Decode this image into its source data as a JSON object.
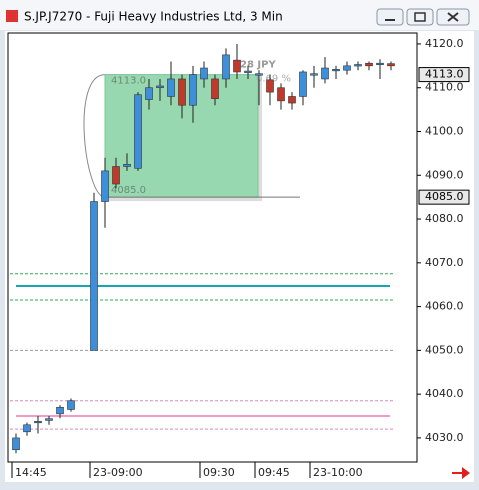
{
  "chart_data": {
    "type": "candlestick",
    "title": "S.JP.J7270 - Fuji Heavy Industries Ltd, 3 Min",
    "categories": [
      "14:45",
      null,
      null,
      null,
      null,
      null,
      "23-09:00",
      null,
      null,
      null,
      null,
      null,
      null,
      null,
      null,
      null,
      "09:30",
      null,
      null,
      null,
      null,
      "09:45",
      null,
      null,
      null,
      null,
      "23-10:00",
      null,
      null,
      null,
      null,
      null,
      null,
      null
    ],
    "open": [
      4027.3,
      4031.4,
      4033.5,
      4034,
      4035.5,
      4036.5,
      4050,
      4084,
      4092,
      4092,
      4091.6,
      4107.3,
      4110,
      4108,
      4112,
      4106,
      4112,
      4112,
      4112,
      4116.3,
      4113.5,
      4113,
      4111.8,
      4110,
      4108,
      4108,
      4113,
      4112,
      4114,
      4114,
      4115,
      4115.6,
      4115.5,
      4115.5
    ],
    "high": [
      4031,
      4033.5,
      4035,
      4035,
      4037.5,
      4039,
      4086,
      4094,
      4094,
      4095,
      4109,
      4112,
      4112,
      4116,
      4113,
      4115,
      4116,
      4113,
      4119,
      4120,
      4115,
      4114,
      4113,
      4111,
      4109,
      4114,
      4115,
      4117,
      4115,
      4116,
      4116,
      4116,
      4116.5,
      4116
    ],
    "low": [
      4026.5,
      4030.5,
      4031,
      4033,
      4034.5,
      4036,
      4050,
      4078,
      4087,
      4091,
      4091,
      4105,
      4107,
      4106,
      4103,
      4102,
      4110,
      4106,
      4110,
      4112,
      4112,
      4106,
      4106,
      4105,
      4105,
      4106,
      4110,
      4111,
      4112,
      4113,
      4114,
      4114,
      4112,
      4114
    ],
    "close": [
      4030,
      4033,
      4033.8,
      4034.4,
      4037,
      4038.5,
      4084,
      4091,
      4088,
      4092.5,
      4108.4,
      4110,
      4110.4,
      4112,
      4106,
      4113,
      4114.5,
      4107.5,
      4117.5,
      4113.6,
      4113.8,
      4113.2,
      4109,
      4107,
      4106.5,
      4113.6,
      4113.2,
      4114.5,
      4114.2,
      4115,
      4115.3,
      4115,
      4115.6,
      4115
    ],
    "up_color": "#3d8fdc",
    "down_color": "#c0392b",
    "ylim": [
      4024.5,
      4122.5
    ],
    "yticks": [
      {
        "value": 4030,
        "label": "4030.0"
      },
      {
        "value": 4040,
        "label": "4040.0"
      },
      {
        "value": 4050,
        "label": "4050.0"
      },
      {
        "value": 4060,
        "label": "4060.0"
      },
      {
        "value": 4070,
        "label": "4070.0"
      },
      {
        "value": 4080,
        "label": "4080.0"
      },
      {
        "value": 4090,
        "label": "4090.0"
      },
      {
        "value": 4100,
        "label": "4100.0"
      },
      {
        "value": 4110,
        "label": "4110.0"
      },
      {
        "value": 4120,
        "label": "4120.0"
      }
    ],
    "price_markers": [
      {
        "value": 4113,
        "label": "4113.0"
      },
      {
        "value": 4085,
        "label": "4085.0"
      }
    ],
    "range_change": "28 JPY",
    "range_percent": "0.69 %",
    "lines": [
      {
        "value": 4050,
        "color": "#999999",
        "dashed": true
      },
      {
        "value": 4067.5,
        "color": "#2eaa55",
        "dashed": true
      },
      {
        "value": 4064.7,
        "color": "#1aa3b0",
        "dashed": false
      },
      {
        "value": 4061.5,
        "color": "#2eaa55",
        "dashed": true
      },
      {
        "value": 4038.5,
        "color": "#d98cc0",
        "dashed": true
      },
      {
        "value": 4035,
        "color": "#f29ac8",
        "dashed": false
      },
      {
        "value": 4032,
        "color": "#d98cc0",
        "dashed": true
      }
    ]
  }
}
